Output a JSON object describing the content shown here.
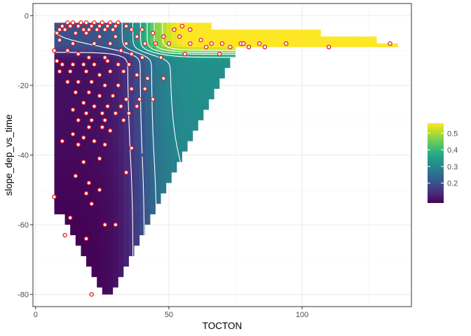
{
  "chart_data": {
    "type": "heatmap",
    "title": "",
    "xlabel": "TOCTON",
    "ylabel": "slope_dep_vs_time",
    "xlim": [
      -1,
      141
    ],
    "ylim": [
      -83.5,
      3.5
    ],
    "x_ticks": [
      0,
      50,
      100
    ],
    "x_tick_labels": [
      "0",
      "50",
      "100"
    ],
    "y_ticks": [
      0,
      -20,
      -40,
      -60,
      -80
    ],
    "y_tick_labels": [
      "0",
      "-20",
      "-40",
      "-60",
      "-80"
    ],
    "grid": true,
    "theme": "bw",
    "colormap": "viridis",
    "legend": {
      "position": "right",
      "title": "",
      "range": [
        0.08,
        0.56
      ],
      "ticks": [
        0.2,
        0.3,
        0.4,
        0.5
      ],
      "tick_labels": [
        "0.2",
        "0.3",
        "0.4",
        "0.5"
      ]
    },
    "heatmap_region": {
      "x_min": 7,
      "x_step": 2,
      "bottom_y": [
        -57,
        -57,
        -60,
        -63,
        -66,
        -69,
        -72,
        -75,
        -78,
        -80,
        -80,
        -78,
        -75,
        -72,
        -69,
        -66,
        -63,
        -60,
        -57,
        -54,
        -51,
        -48,
        -45,
        -42,
        -39,
        -36,
        -33,
        -30,
        -27,
        -24,
        -21,
        -18,
        -15,
        -12,
        -9
      ],
      "top_y": -2,
      "right_x": [
        [
          -2,
          66
        ],
        [
          -4,
          107
        ],
        [
          -6,
          128
        ],
        [
          -8,
          136
        ]
      ]
    },
    "contour_levels": [
      0.15,
      0.2,
      0.25,
      0.3,
      0.35,
      0.4,
      0.45,
      0.5
    ],
    "line_color": "#ffffff",
    "point_fill": "#ffffff",
    "point_stroke": "#e8191c",
    "points": [
      [
        12,
        -2
      ],
      [
        14,
        -2
      ],
      [
        17,
        -2
      ],
      [
        19,
        -2
      ],
      [
        22,
        -2
      ],
      [
        25,
        -2
      ],
      [
        28,
        -2
      ],
      [
        31,
        -2
      ],
      [
        10,
        -3
      ],
      [
        13,
        -3
      ],
      [
        16,
        -3
      ],
      [
        21,
        -3
      ],
      [
        24,
        -3
      ],
      [
        27,
        -3
      ],
      [
        30,
        -3
      ],
      [
        34,
        -3
      ],
      [
        9,
        -4
      ],
      [
        11,
        -4
      ],
      [
        18,
        -4
      ],
      [
        20,
        -4
      ],
      [
        23,
        -4
      ],
      [
        26,
        -4
      ],
      [
        29,
        -4
      ],
      [
        36,
        -4
      ],
      [
        40,
        -4
      ],
      [
        44,
        -5
      ],
      [
        52,
        -4
      ],
      [
        55,
        -3
      ],
      [
        58,
        -4
      ],
      [
        8,
        -5
      ],
      [
        15,
        -5
      ],
      [
        19,
        -5
      ],
      [
        24,
        -6
      ],
      [
        30,
        -6
      ],
      [
        38,
        -6
      ],
      [
        48,
        -6
      ],
      [
        54,
        -6
      ],
      [
        62,
        -7
      ],
      [
        66,
        -8
      ],
      [
        70,
        -8
      ],
      [
        77,
        -8
      ],
      [
        80,
        -9
      ],
      [
        84,
        -8
      ],
      [
        9,
        -7
      ],
      [
        14,
        -8
      ],
      [
        22,
        -8
      ],
      [
        28,
        -8
      ],
      [
        34,
        -8
      ],
      [
        41,
        -8
      ],
      [
        45,
        -8
      ],
      [
        50,
        -8
      ],
      [
        58,
        -8
      ],
      [
        64,
        -9
      ],
      [
        73,
        -9
      ],
      [
        78,
        -8
      ],
      [
        86,
        -9
      ],
      [
        94,
        -8
      ],
      [
        110,
        -9
      ],
      [
        133,
        -8
      ],
      [
        7,
        -10
      ],
      [
        12,
        -10
      ],
      [
        16,
        -11
      ],
      [
        20,
        -12
      ],
      [
        26,
        -12
      ],
      [
        32,
        -10
      ],
      [
        36,
        -11
      ],
      [
        40,
        -12
      ],
      [
        47,
        -12
      ],
      [
        56,
        -11
      ],
      [
        69,
        -11
      ],
      [
        8,
        -13
      ],
      [
        10,
        -14
      ],
      [
        14,
        -14
      ],
      [
        18,
        -14
      ],
      [
        22,
        -14
      ],
      [
        27,
        -13
      ],
      [
        31,
        -14
      ],
      [
        35,
        -14
      ],
      [
        9,
        -16
      ],
      [
        13,
        -16
      ],
      [
        19,
        -16
      ],
      [
        24,
        -17
      ],
      [
        28,
        -16
      ],
      [
        33,
        -16
      ],
      [
        38,
        -17
      ],
      [
        42,
        -18
      ],
      [
        48,
        -18
      ],
      [
        12,
        -19
      ],
      [
        16,
        -19
      ],
      [
        21,
        -19
      ],
      [
        26,
        -20
      ],
      [
        31,
        -20
      ],
      [
        36,
        -21
      ],
      [
        41,
        -21
      ],
      [
        15,
        -22
      ],
      [
        20,
        -22
      ],
      [
        24,
        -23
      ],
      [
        29,
        -23
      ],
      [
        34,
        -24
      ],
      [
        39,
        -24
      ],
      [
        44,
        -24
      ],
      [
        18,
        -25
      ],
      [
        22,
        -26
      ],
      [
        27,
        -26
      ],
      [
        32,
        -26
      ],
      [
        38,
        -26
      ],
      [
        14,
        -27
      ],
      [
        19,
        -28
      ],
      [
        25,
        -28
      ],
      [
        30,
        -28
      ],
      [
        35,
        -28
      ],
      [
        16,
        -30
      ],
      [
        21,
        -30
      ],
      [
        26,
        -30
      ],
      [
        33,
        -30
      ],
      [
        20,
        -32
      ],
      [
        25,
        -32
      ],
      [
        28,
        -33
      ],
      [
        14,
        -34
      ],
      [
        18,
        -35
      ],
      [
        22,
        -36
      ],
      [
        26,
        -37
      ],
      [
        10,
        -36
      ],
      [
        16,
        -37
      ],
      [
        36,
        -38
      ],
      [
        24,
        -41
      ],
      [
        18,
        -42
      ],
      [
        34,
        -45
      ],
      [
        15,
        -46
      ],
      [
        20,
        -48
      ],
      [
        24,
        -50
      ],
      [
        19,
        -51
      ],
      [
        21,
        -54
      ],
      [
        7,
        -52
      ],
      [
        13,
        -58
      ],
      [
        26,
        -60
      ],
      [
        30,
        -60
      ],
      [
        11,
        -63
      ],
      [
        19,
        -64
      ],
      [
        21,
        -80
      ]
    ]
  }
}
